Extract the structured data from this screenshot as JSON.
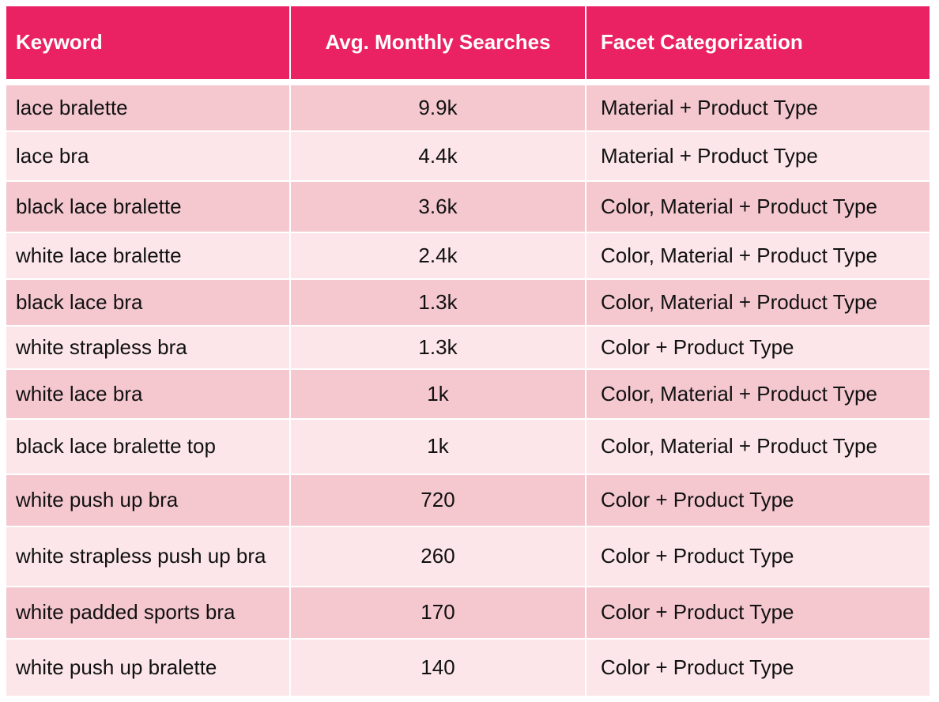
{
  "table": {
    "header": [
      "Keyword",
      "Avg. Monthly Searches",
      "Facet Categorization"
    ],
    "rows": [
      [
        "lace bralette",
        "9.9k",
        "Material + Product Type"
      ],
      [
        "lace bra",
        "4.4k",
        "Material + Product Type"
      ],
      [
        "black lace bralette",
        "3.6k",
        "Color, Material + Product Type"
      ],
      [
        "white lace bralette",
        "2.4k",
        "Color, Material + Product Type"
      ],
      [
        "black lace bra",
        "1.3k",
        "Color, Material + Product Type"
      ],
      [
        "white strapless bra",
        "1.3k",
        "Color + Product Type"
      ],
      [
        "white lace bra",
        "1k",
        "Color, Material + Product Type"
      ],
      [
        "black lace bralette top",
        "1k",
        "Color, Material + Product Type"
      ],
      [
        "white push up bra",
        "720",
        "Color + Product Type"
      ],
      [
        "white strapless push up bra",
        "260",
        "Color + Product Type"
      ],
      [
        "white padded sports bra",
        "170",
        "Color + Product Type"
      ],
      [
        "white push up bralette",
        "140",
        "Color + Product Type"
      ]
    ]
  }
}
